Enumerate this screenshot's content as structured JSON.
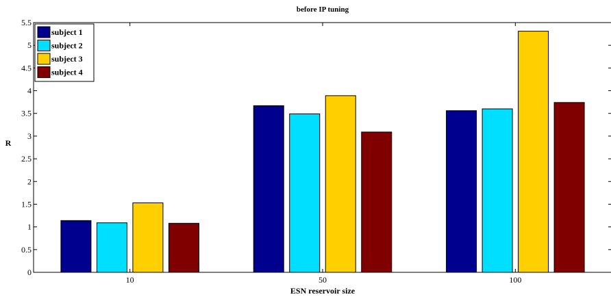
{
  "chart_data": {
    "type": "bar",
    "title": "before IP tuning",
    "xlabel": "ESN reservoir size",
    "ylabel": "R",
    "categories": [
      "10",
      "50",
      "100"
    ],
    "ylim": [
      0,
      5.5
    ],
    "yticks": [
      "0",
      "0.5",
      "1",
      "1.5",
      "2",
      "2.5",
      "3",
      "3.5",
      "4",
      "4.5",
      "5",
      "5.5"
    ],
    "legend_position": "top-left",
    "grid": false,
    "series": [
      {
        "name": "subject 1",
        "color": "#00008f",
        "values": [
          1.14,
          3.67,
          3.56
        ]
      },
      {
        "name": "subject 2",
        "color": "#00dfff",
        "values": [
          1.09,
          3.49,
          3.6
        ]
      },
      {
        "name": "subject 3",
        "color": "#ffcf00",
        "values": [
          1.53,
          3.89,
          5.31
        ]
      },
      {
        "name": "subject 4",
        "color": "#800000",
        "values": [
          1.08,
          3.09,
          3.74
        ]
      }
    ]
  }
}
